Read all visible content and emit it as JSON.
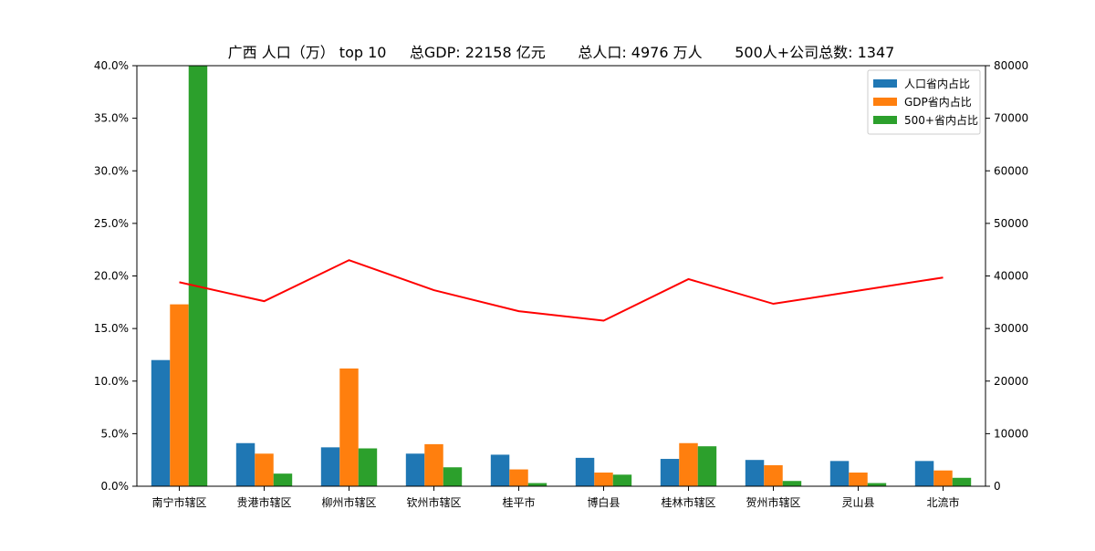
{
  "chart_data": {
    "type": "bar",
    "title": "广西 人口（万） top 10     总GDP: 22158 亿元       总人口: 4976 万人       500人+公司总数: 1347",
    "categories": [
      "南宁市辖区",
      "贵港市辖区",
      "柳州市辖区",
      "钦州市辖区",
      "桂平市",
      "博白县",
      "桂林市辖区",
      "贺州市辖区",
      "灵山县",
      "北流市"
    ],
    "series": [
      {
        "name": "人口省内占比",
        "axis": "left",
        "color": "#1f77b4",
        "values": [
          12.0,
          4.1,
          3.7,
          3.1,
          3.0,
          2.7,
          2.6,
          2.5,
          2.4,
          2.4
        ]
      },
      {
        "name": "GDP省内占比",
        "axis": "left",
        "color": "#ff7f0e",
        "values": [
          17.3,
          3.1,
          11.2,
          4.0,
          1.6,
          1.3,
          4.1,
          2.0,
          1.3,
          1.5
        ]
      },
      {
        "name": "500+省内占比",
        "axis": "left",
        "color": "#2ca02c",
        "values": [
          40.0,
          1.2,
          3.6,
          1.8,
          0.3,
          1.1,
          3.8,
          0.5,
          0.3,
          0.8
        ]
      }
    ],
    "line": {
      "axis": "right",
      "color": "#ff0000",
      "values": [
        38800,
        35200,
        43000,
        37300,
        33300,
        31500,
        39400,
        34700,
        37200,
        39700
      ]
    },
    "ylim_left": [
      0,
      40
    ],
    "yticks_left": [
      "0.0%",
      "5.0%",
      "10.0%",
      "15.0%",
      "20.0%",
      "25.0%",
      "30.0%",
      "35.0%",
      "40.0%"
    ],
    "ylim_right": [
      0,
      80000
    ],
    "yticks_right": [
      "0",
      "10000",
      "20000",
      "30000",
      "40000",
      "50000",
      "60000",
      "70000",
      "80000"
    ],
    "grid": false,
    "legend_position": "top-right"
  }
}
